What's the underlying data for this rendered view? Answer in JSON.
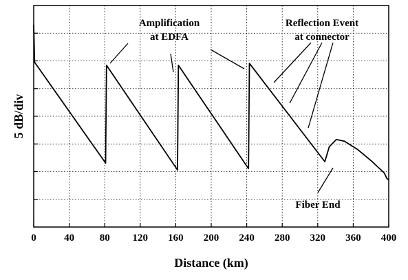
{
  "chart_data": {
    "type": "line",
    "xlabel": "Distance (km)",
    "ylabel": "5 dB/div",
    "xlim": [
      0,
      400
    ],
    "xticks": [
      0,
      40,
      80,
      120,
      160,
      200,
      240,
      280,
      320,
      360,
      400
    ],
    "ylim": [
      0,
      8
    ],
    "yticks": [
      1,
      2,
      3,
      4,
      5,
      6,
      7
    ],
    "grid": true,
    "series": [
      {
        "color": "#000000",
        "x": [
          0,
          1,
          81,
          82,
          162,
          163,
          242,
          243,
          328,
          333,
          341,
          350,
          365,
          380,
          395,
          398,
          400
        ],
        "values": [
          7.3,
          5.95,
          2.31,
          5.84,
          2.06,
          5.84,
          2.11,
          5.91,
          2.36,
          2.9,
          3.16,
          3.1,
          2.8,
          2.4,
          1.95,
          1.75,
          1.7
        ]
      }
    ],
    "annotations": [
      {
        "lines": [
          "Amplification",
          "at EDFA"
        ]
      },
      {
        "lines": [
          "Reflection Event",
          "at connector"
        ]
      },
      {
        "lines": [
          "Fiber End"
        ]
      }
    ]
  }
}
